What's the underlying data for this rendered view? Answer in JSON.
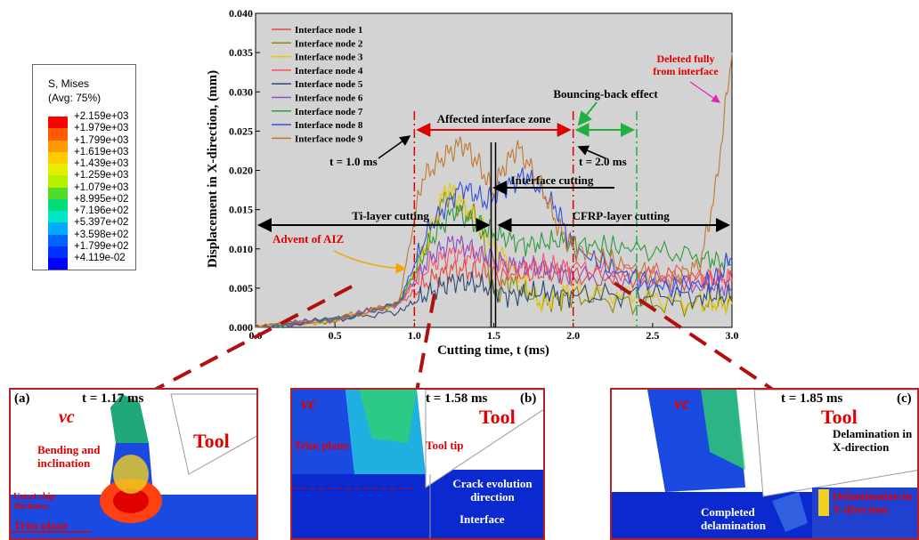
{
  "legend": {
    "title": "S, Mises",
    "subtitle": "(Avg: 75%)",
    "values": [
      "+2.159e+03",
      "+1.979e+03",
      "+1.799e+03",
      "+1.619e+03",
      "+1.439e+03",
      "+1.259e+03",
      "+1.079e+03",
      "+8.995e+02",
      "+7.196e+02",
      "+5.397e+02",
      "+3.598e+02",
      "+1.799e+02",
      "+4.119e-02"
    ],
    "colors": [
      "#ff0000",
      "#ff5a00",
      "#ff9900",
      "#ffcc00",
      "#e6ee00",
      "#b4f000",
      "#50dc28",
      "#00dc78",
      "#00e6c8",
      "#00aaff",
      "#0064ff",
      "#0032ff",
      "#0000ff"
    ]
  },
  "chart_data": {
    "type": "line",
    "xlabel": "Cutting time, t (ms)",
    "ylabel": "Displacement in X-direction, (mm)",
    "xlim": [
      0.0,
      3.0
    ],
    "ylim": [
      0.0,
      0.04
    ],
    "xticks": [
      "0.0",
      "0.5",
      "1.0",
      "1.5",
      "2.0",
      "2.5",
      "3.0"
    ],
    "yticks": [
      "0.000",
      "0.005",
      "0.010",
      "0.015",
      "0.020",
      "0.025",
      "0.030",
      "0.035",
      "0.040"
    ],
    "legend_position": "top-left",
    "series": [
      {
        "name": "Interface node 1",
        "color": "#e8453c",
        "x": [
          0,
          0.5,
          0.9,
          1.1,
          1.25,
          1.4,
          1.5,
          1.8,
          2.0,
          2.4,
          2.8,
          3.0
        ],
        "y": [
          0,
          0.001,
          0.003,
          0.006,
          0.0075,
          0.007,
          0.0065,
          0.007,
          0.0068,
          0.0065,
          0.006,
          0.006
        ]
      },
      {
        "name": "Interface node 2",
        "color": "#8b8b00",
        "x": [
          0,
          0.5,
          0.9,
          1.05,
          1.2,
          1.3,
          1.4,
          1.5,
          1.6,
          1.8,
          2.0,
          2.4,
          2.8,
          3.0
        ],
        "y": [
          0,
          0.001,
          0.003,
          0.009,
          0.017,
          0.015,
          0.014,
          0.004,
          0.006,
          0.003,
          0.004,
          0.003,
          0.003,
          0.003
        ]
      },
      {
        "name": "Interface node 3",
        "color": "#e8c800",
        "x": [
          0,
          0.5,
          0.9,
          1.05,
          1.2,
          1.3,
          1.45,
          1.6,
          1.8,
          2.0,
          2.4,
          2.8,
          3.0
        ],
        "y": [
          0,
          0.001,
          0.003,
          0.009,
          0.018,
          0.016,
          0.012,
          0.008,
          0.003,
          0.005,
          0.004,
          0.003,
          0.003
        ]
      },
      {
        "name": "Interface node 4",
        "color": "#ff4d6a",
        "x": [
          0,
          0.5,
          0.9,
          1.1,
          1.25,
          1.4,
          1.6,
          1.8,
          2.0,
          2.4,
          2.8,
          3.0
        ],
        "y": [
          0,
          0.001,
          0.003,
          0.008,
          0.0095,
          0.009,
          0.0075,
          0.008,
          0.0075,
          0.007,
          0.0065,
          0.006
        ]
      },
      {
        "name": "Interface node 5",
        "color": "#2a4a7a",
        "x": [
          0,
          0.5,
          0.9,
          1.1,
          1.25,
          1.4,
          1.6,
          1.8,
          2.0,
          2.4,
          2.8,
          3.0
        ],
        "y": [
          0,
          0.001,
          0.002,
          0.0045,
          0.006,
          0.0055,
          0.004,
          0.0045,
          0.004,
          0.0042,
          0.004,
          0.004
        ]
      },
      {
        "name": "Interface node 6",
        "color": "#8a4fc0",
        "x": [
          0,
          0.5,
          0.9,
          1.1,
          1.25,
          1.4,
          1.6,
          1.8,
          2.0,
          2.4,
          2.8,
          3.0
        ],
        "y": [
          0,
          0.001,
          0.003,
          0.009,
          0.011,
          0.0095,
          0.008,
          0.0075,
          0.0065,
          0.006,
          0.0055,
          0.005
        ]
      },
      {
        "name": "Interface node 7",
        "color": "#2e9a3a",
        "x": [
          0,
          0.5,
          0.9,
          1.1,
          1.25,
          1.4,
          1.5,
          1.7,
          1.9,
          2.1,
          2.4,
          2.8,
          3.0
        ],
        "y": [
          0,
          0.001,
          0.003,
          0.011,
          0.015,
          0.013,
          0.012,
          0.0105,
          0.011,
          0.0105,
          0.01,
          0.009,
          0.008
        ]
      },
      {
        "name": "Interface node 8",
        "color": "#2f4fe0",
        "x": [
          0,
          0.5,
          0.9,
          1.1,
          1.3,
          1.45,
          1.55,
          1.7,
          1.9,
          2.0,
          2.3,
          2.6,
          2.9,
          3.0
        ],
        "y": [
          0,
          0.001,
          0.003,
          0.013,
          0.018,
          0.016,
          0.0175,
          0.0195,
          0.015,
          0.01,
          0.007,
          0.005,
          0.006,
          0.009
        ]
      },
      {
        "name": "Interface node 9",
        "color": "#c07830",
        "x": [
          0,
          0.5,
          0.9,
          1.05,
          1.2,
          1.3,
          1.4,
          1.5,
          1.55,
          1.65,
          1.8,
          1.9,
          2.0,
          2.3,
          2.6,
          2.8,
          2.9,
          3.0
        ],
        "y": [
          0,
          0.001,
          0.003,
          0.019,
          0.022,
          0.0235,
          0.021,
          0.017,
          0.02,
          0.023,
          0.018,
          0.013,
          0.01,
          0.008,
          0.006,
          0.008,
          0.018,
          0.035
        ]
      }
    ],
    "annotations": {
      "affected_zone": "Affected interface zone",
      "bouncing": "Bouncing-back effect",
      "t1": "t = 1.0 ms",
      "t2": "t = 2.0 ms",
      "interface_cutting": "Interface cutting",
      "ti_cutting": "Ti-layer cutting",
      "cfrp_cutting": "CFRP-layer cutting",
      "aiz": "Advent of AIZ",
      "deleted": "Deleted fully from interface"
    }
  },
  "panels": [
    {
      "id": "(a)",
      "time": "t = 1.17 ms",
      "tool": "Tool",
      "vc": "vc",
      "notes": [
        "Bending and inclination",
        "Uncut chip thickness",
        "Trim plane"
      ]
    },
    {
      "id": "(b)",
      "time": "t = 1.58 ms",
      "tool": "Tool",
      "vc": "vc",
      "notes": [
        "Trim plane",
        "Tool tip",
        "Crack evolution direction",
        "Interface"
      ]
    },
    {
      "id": "(c)",
      "time": "t = 1.85 ms",
      "tool": "Tool",
      "vc": "vc",
      "notes": [
        "Delamination in X-direction",
        "Completed delamination",
        "Delamination in Y-direction"
      ]
    }
  ]
}
